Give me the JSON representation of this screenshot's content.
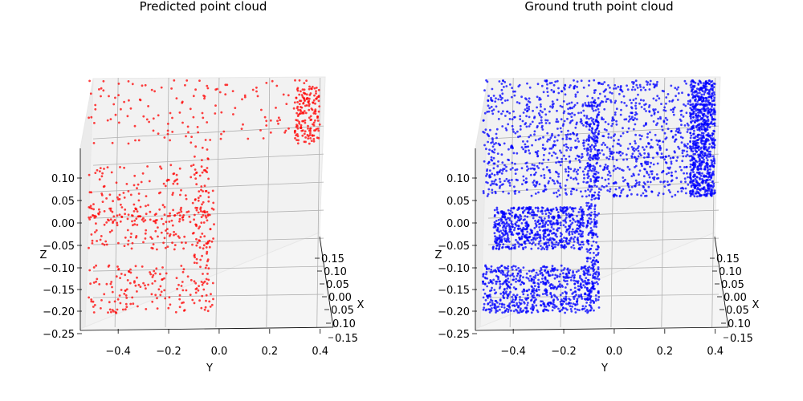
{
  "chart_data": [
    {
      "type": "scatter",
      "projection": "3d",
      "title": "Predicted point cloud",
      "xlabel": "X",
      "ylabel": "Y",
      "zlabel": "Z",
      "point_color": "#ff0000",
      "point_count": 900,
      "xlim": [
        -0.15,
        0.15
      ],
      "ylim": [
        -0.55,
        0.42
      ],
      "zlim": [
        -0.25,
        0.22
      ],
      "x_ticks": [
        "0.15",
        "0.10",
        "0.05",
        "0.00",
        "0.05",
        "0.10",
        "0.15"
      ],
      "y_ticks": [
        "−0.4",
        "−0.2",
        "0.0",
        "0.2",
        "0.4"
      ],
      "z_ticks": [
        "0.10",
        "0.05",
        "0.00",
        "−0.05",
        "−0.10",
        "−0.15",
        "−0.20",
        "−0.25"
      ],
      "shape_parts": [
        {
          "name": "top bar",
          "y": [
            -0.52,
            0.38
          ],
          "z": [
            0.1,
            0.22
          ]
        },
        {
          "name": "upper-middle bar",
          "y": [
            -0.52,
            -0.02
          ],
          "z": [
            -0.05,
            0.06
          ]
        },
        {
          "name": "lower-middle bar",
          "y": [
            -0.52,
            -0.02
          ],
          "z": [
            -0.1,
            -0.02
          ]
        },
        {
          "name": "bottom bar",
          "y": [
            -0.52,
            -0.02
          ],
          "z": [
            -0.22,
            -0.13
          ]
        },
        {
          "name": "vertical stem",
          "y": [
            -0.1,
            -0.04
          ],
          "z": [
            -0.22,
            0.1
          ]
        },
        {
          "name": "rounded right end",
          "y": [
            0.3,
            0.4
          ],
          "z": [
            0.1,
            0.22
          ]
        }
      ]
    },
    {
      "type": "scatter",
      "projection": "3d",
      "title": "Ground truth point cloud",
      "xlabel": "X",
      "ylabel": "Y",
      "zlabel": "Z",
      "point_color": "#0000ff",
      "point_count": 4000,
      "xlim": [
        -0.15,
        0.15
      ],
      "ylim": [
        -0.55,
        0.42
      ],
      "zlim": [
        -0.25,
        0.22
      ],
      "x_ticks": [
        "0.15",
        "0.10",
        "0.05",
        "0.00",
        "0.05",
        "0.10",
        "0.15"
      ],
      "y_ticks": [
        "−0.4",
        "−0.2",
        "0.0",
        "0.2",
        "0.4"
      ],
      "z_ticks": [
        "0.10",
        "0.05",
        "0.00",
        "−0.05",
        "−0.10",
        "−0.15",
        "−0.20",
        "−0.25"
      ],
      "shape_parts": [
        {
          "name": "top bar",
          "y": [
            -0.52,
            0.38
          ],
          "z": [
            0.1,
            0.22
          ]
        },
        {
          "name": "upper-middle bar",
          "y": [
            -0.52,
            0.38
          ],
          "z": [
            0.0,
            0.1
          ]
        },
        {
          "name": "lower-middle bar",
          "y": [
            -0.48,
            -0.12
          ],
          "z": [
            -0.1,
            -0.02
          ]
        },
        {
          "name": "bottom bar",
          "y": [
            -0.52,
            -0.08
          ],
          "z": [
            -0.22,
            -0.13
          ]
        },
        {
          "name": "vertical stem",
          "y": [
            -0.11,
            -0.06
          ],
          "z": [
            -0.22,
            0.18
          ]
        },
        {
          "name": "rounded right end",
          "y": [
            0.3,
            0.4
          ],
          "z": [
            0.0,
            0.22
          ]
        }
      ]
    }
  ]
}
